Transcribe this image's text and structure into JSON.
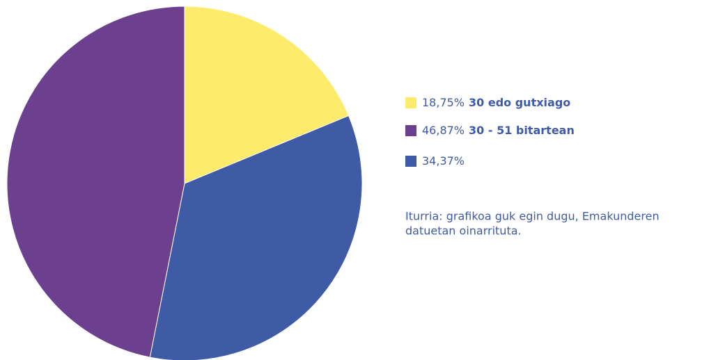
{
  "chart_data": {
    "type": "pie",
    "categories": [
      "30 edo gutxiago",
      null,
      "30 - 51 bitartean"
    ],
    "values": [
      18.75,
      34.37,
      46.87
    ],
    "value_labels": [
      "18,75%",
      "34,37%",
      "46,87%"
    ],
    "colors": [
      "#fdeb6b",
      "#3f5ba5",
      "#6c3f8f"
    ],
    "source": [
      "Iturria: grafikoa guk egin dugu, Emakunderen",
      "datuetan oinarrituta."
    ]
  }
}
